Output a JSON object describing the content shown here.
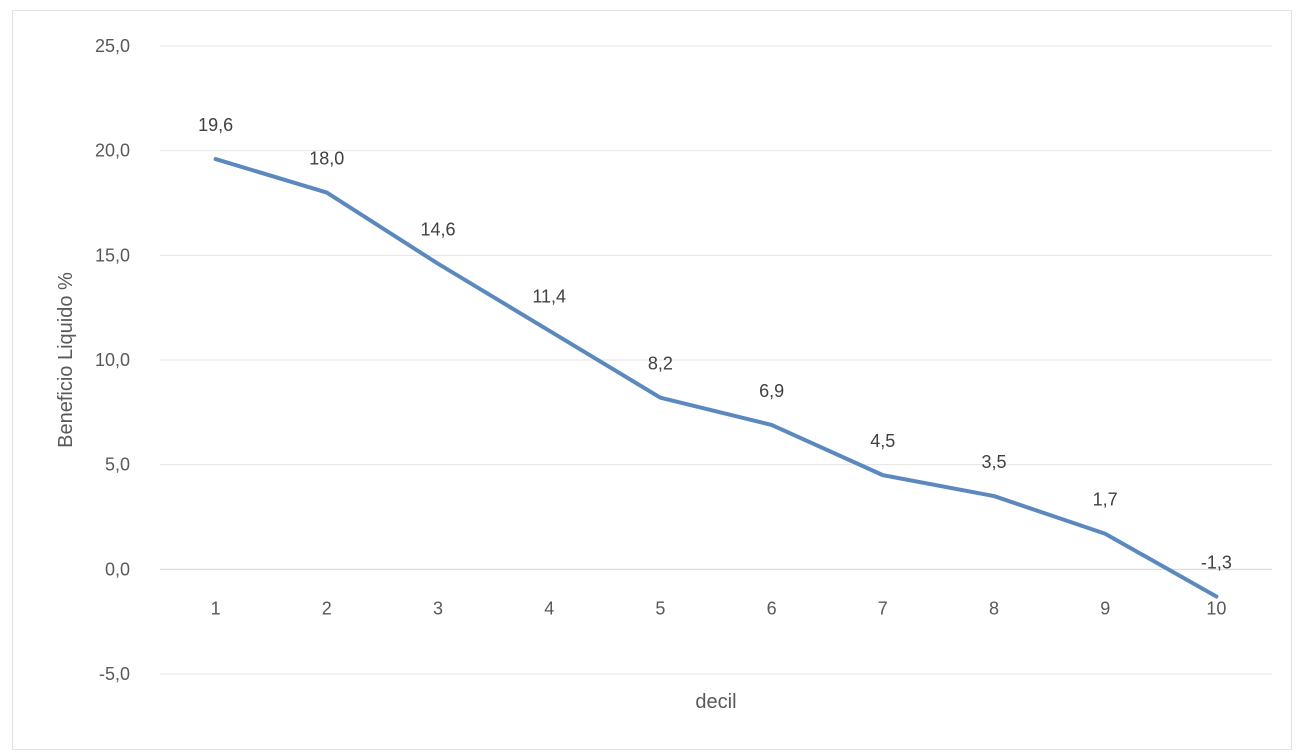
{
  "chart_data": {
    "type": "line",
    "title": "",
    "xlabel": "decil",
    "ylabel": "Beneficio Liquido %",
    "categories": [
      "1",
      "2",
      "3",
      "4",
      "5",
      "6",
      "7",
      "8",
      "9",
      "10"
    ],
    "values": [
      19.6,
      18.0,
      14.6,
      11.4,
      8.2,
      6.9,
      4.5,
      3.5,
      1.7,
      -1.3
    ],
    "data_labels": [
      "19,6",
      "18,0",
      "14,6",
      "11,4",
      "8,2",
      "6,9",
      "4,5",
      "3,5",
      "1,7",
      "-1,3"
    ],
    "y_ticks": [
      25,
      20,
      15,
      10,
      5,
      0,
      -5
    ],
    "y_tick_labels": [
      "25,0",
      "20,0",
      "15,0",
      "10,0",
      "5,0",
      "0,0",
      "-5,0"
    ],
    "ylim": [
      -5,
      25
    ],
    "grid": true,
    "legend": "none",
    "series_color": "#5b89be"
  }
}
